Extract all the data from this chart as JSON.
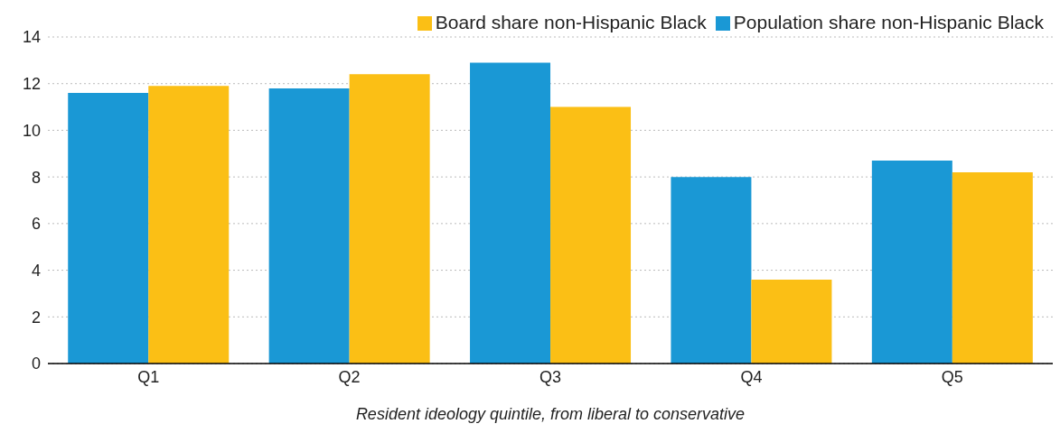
{
  "chart_data": {
    "type": "bar",
    "xlabel": "Resident ideology quintile, from liberal to conservative",
    "categories": [
      "Q1",
      "Q2",
      "Q3",
      "Q4",
      "Q5"
    ],
    "series": [
      {
        "name": "Population share non-Hispanic Black",
        "color": "#1a98d5",
        "values": [
          11.6,
          11.8,
          12.9,
          8.0,
          8.7
        ]
      },
      {
        "name": "Board share non-Hispanic Black",
        "color": "#fbbf15",
        "values": [
          11.9,
          12.4,
          11.0,
          3.6,
          8.2
        ]
      }
    ],
    "ylim": [
      0,
      14
    ],
    "yticks": [
      0,
      2,
      4,
      6,
      8,
      10,
      12,
      14
    ],
    "grid": "y",
    "legend": "top right"
  }
}
